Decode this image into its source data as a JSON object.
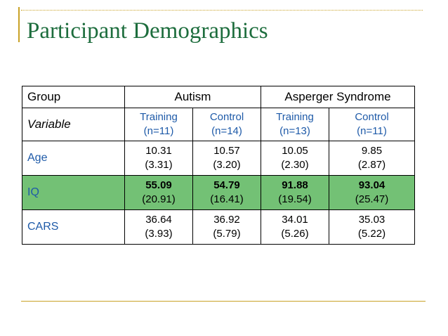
{
  "slide": {
    "title": "Participant Demographics"
  },
  "table": {
    "group_label": "Group",
    "variable_label": "Variable",
    "groups": [
      "Autism",
      "Asperger Syndrome"
    ],
    "subcolumns": [
      {
        "name": "Training",
        "n": "(n=11)"
      },
      {
        "name": "Control",
        "n": "(n=14)"
      },
      {
        "name": "Training",
        "n": "(n=13)"
      },
      {
        "name": "Control",
        "n": "(n=11)"
      }
    ],
    "rows": [
      {
        "label": "Age",
        "highlight": false,
        "cells": [
          {
            "mean": "10.31",
            "sd": "(3.31)"
          },
          {
            "mean": "10.57",
            "sd": "(3.20)"
          },
          {
            "mean": "10.05",
            "sd": "(2.30)"
          },
          {
            "mean": "9.85",
            "sd": "(2.87)"
          }
        ]
      },
      {
        "label": "IQ",
        "highlight": true,
        "cells": [
          {
            "mean": "55.09",
            "sd": "(20.91)"
          },
          {
            "mean": "54.79",
            "sd": "(16.41)"
          },
          {
            "mean": "91.88",
            "sd": "(19.54)"
          },
          {
            "mean": "93.04",
            "sd": "(25.47)"
          }
        ]
      },
      {
        "label": "CARS",
        "highlight": false,
        "cells": [
          {
            "mean": "36.64",
            "sd": "(3.93)"
          },
          {
            "mean": "36.92",
            "sd": "(5.79)"
          },
          {
            "mean": "34.01",
            "sd": "(5.26)"
          },
          {
            "mean": "35.03",
            "sd": "(5.22)"
          }
        ]
      }
    ],
    "highlight_color": "#73c175",
    "accent_color": "#1e5aa8",
    "title_color": "#1d6d3d",
    "rule_color": "#c9a227"
  }
}
